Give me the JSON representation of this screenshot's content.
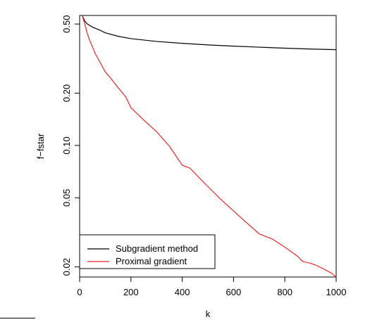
{
  "chart_data": {
    "type": "line",
    "title": "",
    "xlabel": "k",
    "ylabel": "f−fstar",
    "xlim": [
      0,
      1000
    ],
    "ylim": [
      0.0175,
      0.56
    ],
    "yscale": "log",
    "xticks": [
      0,
      200,
      400,
      600,
      800,
      1000
    ],
    "xtick_labels": [
      "0",
      "200",
      "400",
      "600",
      "800",
      "1000"
    ],
    "yticks": [
      0.02,
      0.05,
      0.1,
      0.2,
      0.5
    ],
    "ytick_labels": [
      "0.02",
      "0.05",
      "0.10",
      "0.20",
      "0.50"
    ],
    "grid": false,
    "legend_position": "bottom-left",
    "series": [
      {
        "name": "Subgradient method",
        "color": "#000000",
        "x": [
          10,
          20,
          30,
          50,
          80,
          100,
          150,
          200,
          300,
          400,
          500,
          600,
          700,
          800,
          900,
          1000
        ],
        "y": [
          0.56,
          0.52,
          0.5,
          0.48,
          0.46,
          0.445,
          0.425,
          0.412,
          0.397,
          0.387,
          0.379,
          0.373,
          0.368,
          0.363,
          0.359,
          0.356
        ]
      },
      {
        "name": "Proximal gradient",
        "color": "#e8272a",
        "x": [
          10,
          20,
          30,
          40,
          50,
          60,
          80,
          100,
          120,
          150,
          180,
          200,
          250,
          300,
          350,
          400,
          430,
          450,
          500,
          550,
          600,
          650,
          700,
          750,
          800,
          850,
          870,
          900,
          920,
          950,
          980,
          1000
        ],
        "y": [
          0.56,
          0.5,
          0.44,
          0.4,
          0.37,
          0.34,
          0.3,
          0.265,
          0.245,
          0.215,
          0.19,
          0.165,
          0.14,
          0.12,
          0.099,
          0.077,
          0.074,
          0.069,
          0.058,
          0.049,
          0.042,
          0.036,
          0.031,
          0.029,
          0.026,
          0.023,
          0.0215,
          0.021,
          0.0205,
          0.0195,
          0.0185,
          0.0175
        ]
      }
    ]
  }
}
